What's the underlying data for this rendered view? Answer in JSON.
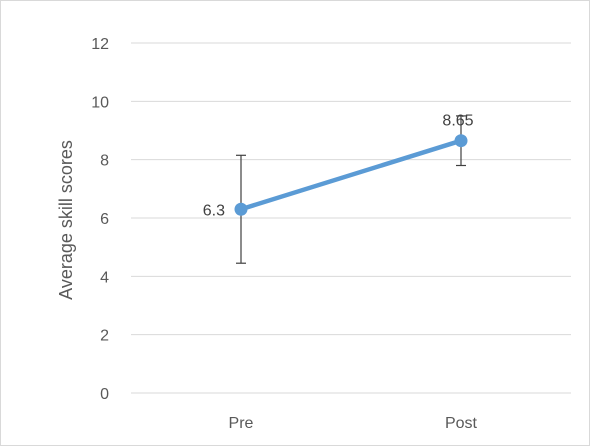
{
  "chart_data": {
    "type": "line",
    "title": "",
    "xlabel": "",
    "ylabel": "Average skill scores",
    "categories": [
      "Pre",
      "Post"
    ],
    "series": [
      {
        "values": [
          6.3,
          8.65
        ],
        "error_low": [
          4.45,
          7.8
        ],
        "error_high": [
          8.15,
          9.5
        ],
        "data_labels": [
          "6.3",
          "8.65"
        ]
      }
    ],
    "ylim": [
      0,
      12
    ],
    "yticks": [
      0,
      2,
      4,
      6,
      8,
      10,
      12
    ],
    "grid": "horizontal",
    "legend": "none",
    "colors": {
      "series": "#5b9bd5",
      "error_bar": "#404040",
      "grid": "#d9d9d9",
      "text": "#595959"
    }
  }
}
